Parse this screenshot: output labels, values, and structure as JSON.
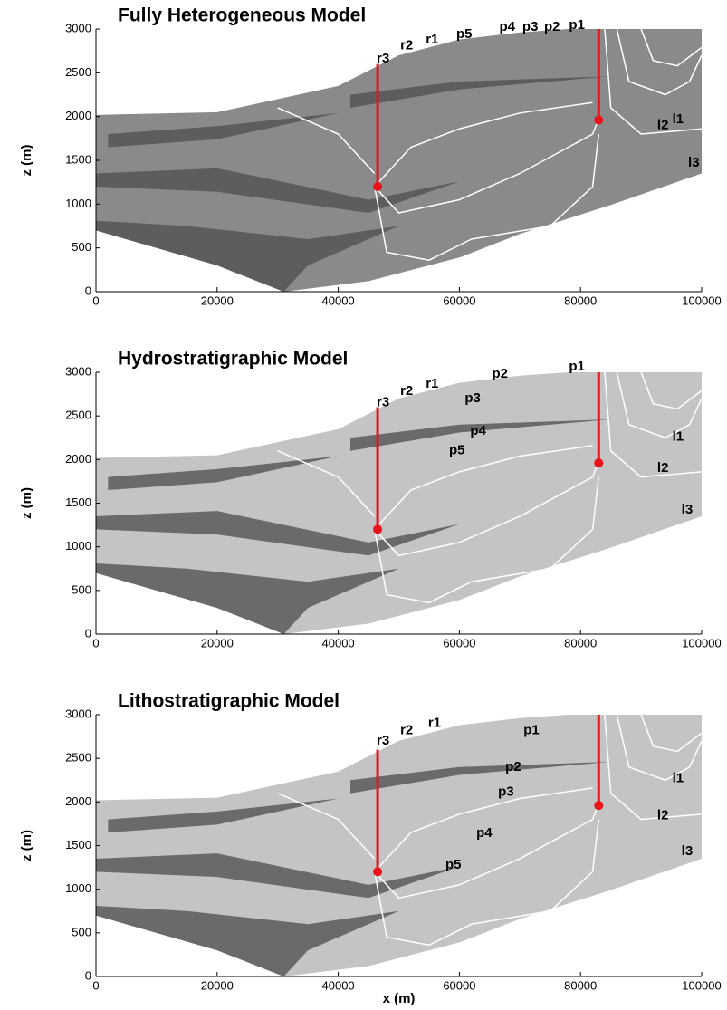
{
  "chart_data": [
    {
      "type": "cross-section",
      "title": "Fully Heterogeneous Model",
      "ylabel": "z (m)",
      "xlim": [
        0,
        100000
      ],
      "ylim": [
        0,
        3000
      ],
      "xticks": [
        0,
        20000,
        40000,
        60000,
        80000,
        100000
      ],
      "yticks": [
        0,
        500,
        1000,
        1500,
        2000,
        2500,
        3000
      ],
      "background": "#8a8a8a",
      "wells": {
        "x": [
          46500,
          83000
        ],
        "top": [
          2600,
          3000
        ],
        "bottom": [
          1200,
          1960
        ],
        "color": "#e8141a"
      },
      "annotations": [
        {
          "text": "r3",
          "x": 47400,
          "y": 2660,
          "color": "#22a866"
        },
        {
          "text": "r2",
          "x": 51300,
          "y": 2810,
          "color": "#22a866"
        },
        {
          "text": "r1",
          "x": 55500,
          "y": 2875,
          "color": "#22a866"
        },
        {
          "text": "p5",
          "x": 60800,
          "y": 2940,
          "color": "#1f3fbf"
        },
        {
          "text": "p4",
          "x": 67900,
          "y": 3020,
          "color": "#1f3fbf"
        },
        {
          "text": "p3",
          "x": 71700,
          "y": 3020,
          "color": "#1f3fbf"
        },
        {
          "text": "p2",
          "x": 75300,
          "y": 3020,
          "color": "#1f3fbf"
        },
        {
          "text": "p1",
          "x": 79400,
          "y": 3040,
          "color": "#1f3fbf"
        },
        {
          "text": "l1",
          "x": 96100,
          "y": 1965,
          "color": "#000000"
        },
        {
          "text": "l2",
          "x": 93600,
          "y": 1900,
          "color": "#000000"
        },
        {
          "text": "l3",
          "x": 98700,
          "y": 1470,
          "color": "#000000"
        }
      ]
    },
    {
      "type": "cross-section",
      "title": "Hydrostratigraphic Model",
      "ylabel": "z (m)",
      "xlim": [
        0,
        100000
      ],
      "ylim": [
        0,
        3000
      ],
      "xticks": [
        0,
        20000,
        40000,
        60000,
        80000,
        100000
      ],
      "yticks": [
        0,
        500,
        1000,
        1500,
        2000,
        2500,
        3000
      ],
      "background": "#c4c4c4",
      "wells": {
        "x": [
          46500,
          83000
        ],
        "top": [
          2600,
          3000
        ],
        "bottom": [
          1200,
          1960
        ],
        "color": "#e8141a"
      },
      "annotations": [
        {
          "text": "r3",
          "x": 47400,
          "y": 2650,
          "color": "#22a866"
        },
        {
          "text": "r2",
          "x": 51300,
          "y": 2780,
          "color": "#22a866"
        },
        {
          "text": "r1",
          "x": 55500,
          "y": 2865,
          "color": "#22a866"
        },
        {
          "text": "p2",
          "x": 66700,
          "y": 2980,
          "color": "#1f3fbf"
        },
        {
          "text": "p1",
          "x": 79400,
          "y": 3060,
          "color": "#1f3fbf"
        },
        {
          "text": "p3",
          "x": 62200,
          "y": 2700,
          "color": "#1f3fbf"
        },
        {
          "text": "p4",
          "x": 63100,
          "y": 2325,
          "color": "#1f3fbf"
        },
        {
          "text": "p5",
          "x": 59600,
          "y": 2100,
          "color": "#1f3fbf"
        },
        {
          "text": "l1",
          "x": 96100,
          "y": 2260,
          "color": "#000000"
        },
        {
          "text": "l2",
          "x": 93600,
          "y": 1900,
          "color": "#000000"
        },
        {
          "text": "l3",
          "x": 97600,
          "y": 1420,
          "color": "#000000"
        }
      ]
    },
    {
      "type": "cross-section",
      "title": "Lithostratigraphic Model",
      "ylabel": "z (m)",
      "xlabel": "x (m)",
      "xlim": [
        0,
        100000
      ],
      "ylim": [
        0,
        3000
      ],
      "xticks": [
        0,
        20000,
        40000,
        60000,
        80000,
        100000
      ],
      "yticks": [
        0,
        500,
        1000,
        1500,
        2000,
        2500,
        3000
      ],
      "background": "#c4c4c4",
      "wells": {
        "x": [
          46500,
          83000
        ],
        "top": [
          2600,
          3000
        ],
        "bottom": [
          1200,
          1960
        ],
        "color": "#e8141a"
      },
      "annotations": [
        {
          "text": "r3",
          "x": 47400,
          "y": 2700,
          "color": "#22a866"
        },
        {
          "text": "r2",
          "x": 51300,
          "y": 2820,
          "color": "#22a866"
        },
        {
          "text": "r1",
          "x": 55900,
          "y": 2900,
          "color": "#22a866"
        },
        {
          "text": "p1",
          "x": 71900,
          "y": 2820,
          "color": "#1f3fbf"
        },
        {
          "text": "p2",
          "x": 68900,
          "y": 2400,
          "color": "#1f3fbf"
        },
        {
          "text": "p3",
          "x": 67700,
          "y": 2110,
          "color": "#1f3fbf"
        },
        {
          "text": "p4",
          "x": 64100,
          "y": 1640,
          "color": "#1f3fbf"
        },
        {
          "text": "p5",
          "x": 59000,
          "y": 1275,
          "color": "#1f3fbf"
        },
        {
          "text": "l1",
          "x": 96100,
          "y": 2270,
          "color": "#000000"
        },
        {
          "text": "l2",
          "x": 93600,
          "y": 1840,
          "color": "#000000"
        },
        {
          "text": "l3",
          "x": 97600,
          "y": 1430,
          "color": "#000000"
        }
      ]
    }
  ]
}
